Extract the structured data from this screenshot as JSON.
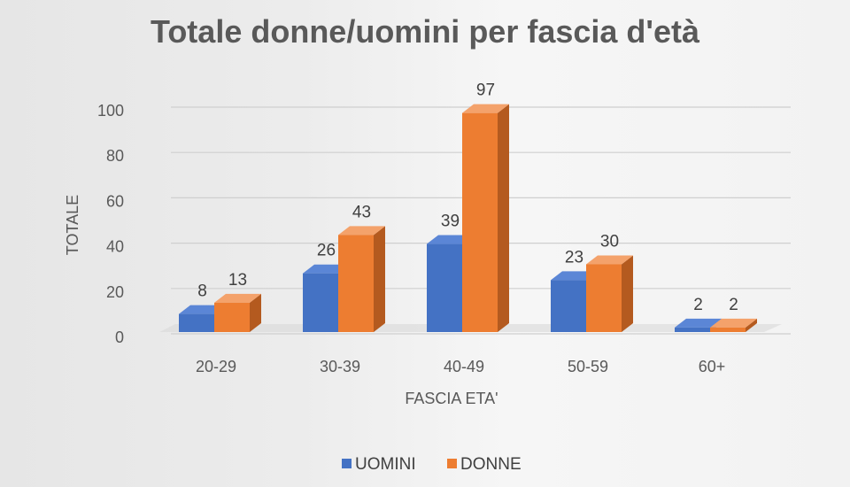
{
  "colors": {
    "UOMINI": {
      "front": "#4472c4",
      "side": "#2f5597",
      "top": "#5b86d6"
    },
    "DONNE": {
      "front": "#ed7d31",
      "side": "#b45a1f",
      "top": "#f4a26b"
    }
  },
  "chart_data": {
    "type": "bar",
    "title": "Totale donne/uomini per fascia d'età",
    "xlabel": "FASCIA ETA'",
    "ylabel": "TOTALE",
    "categories": [
      "20-29",
      "30-39",
      "40-49",
      "50-59",
      "60+"
    ],
    "series": [
      {
        "name": "UOMINI",
        "values": [
          8,
          26,
          39,
          23,
          2
        ]
      },
      {
        "name": "DONNE",
        "values": [
          13,
          43,
          97,
          30,
          2
        ]
      }
    ],
    "ylim": [
      0,
      100
    ],
    "yticks": [
      0,
      20,
      40,
      60,
      80,
      100
    ],
    "grid": true,
    "legend_position": "bottom",
    "projection": "3d-clustered-column"
  }
}
